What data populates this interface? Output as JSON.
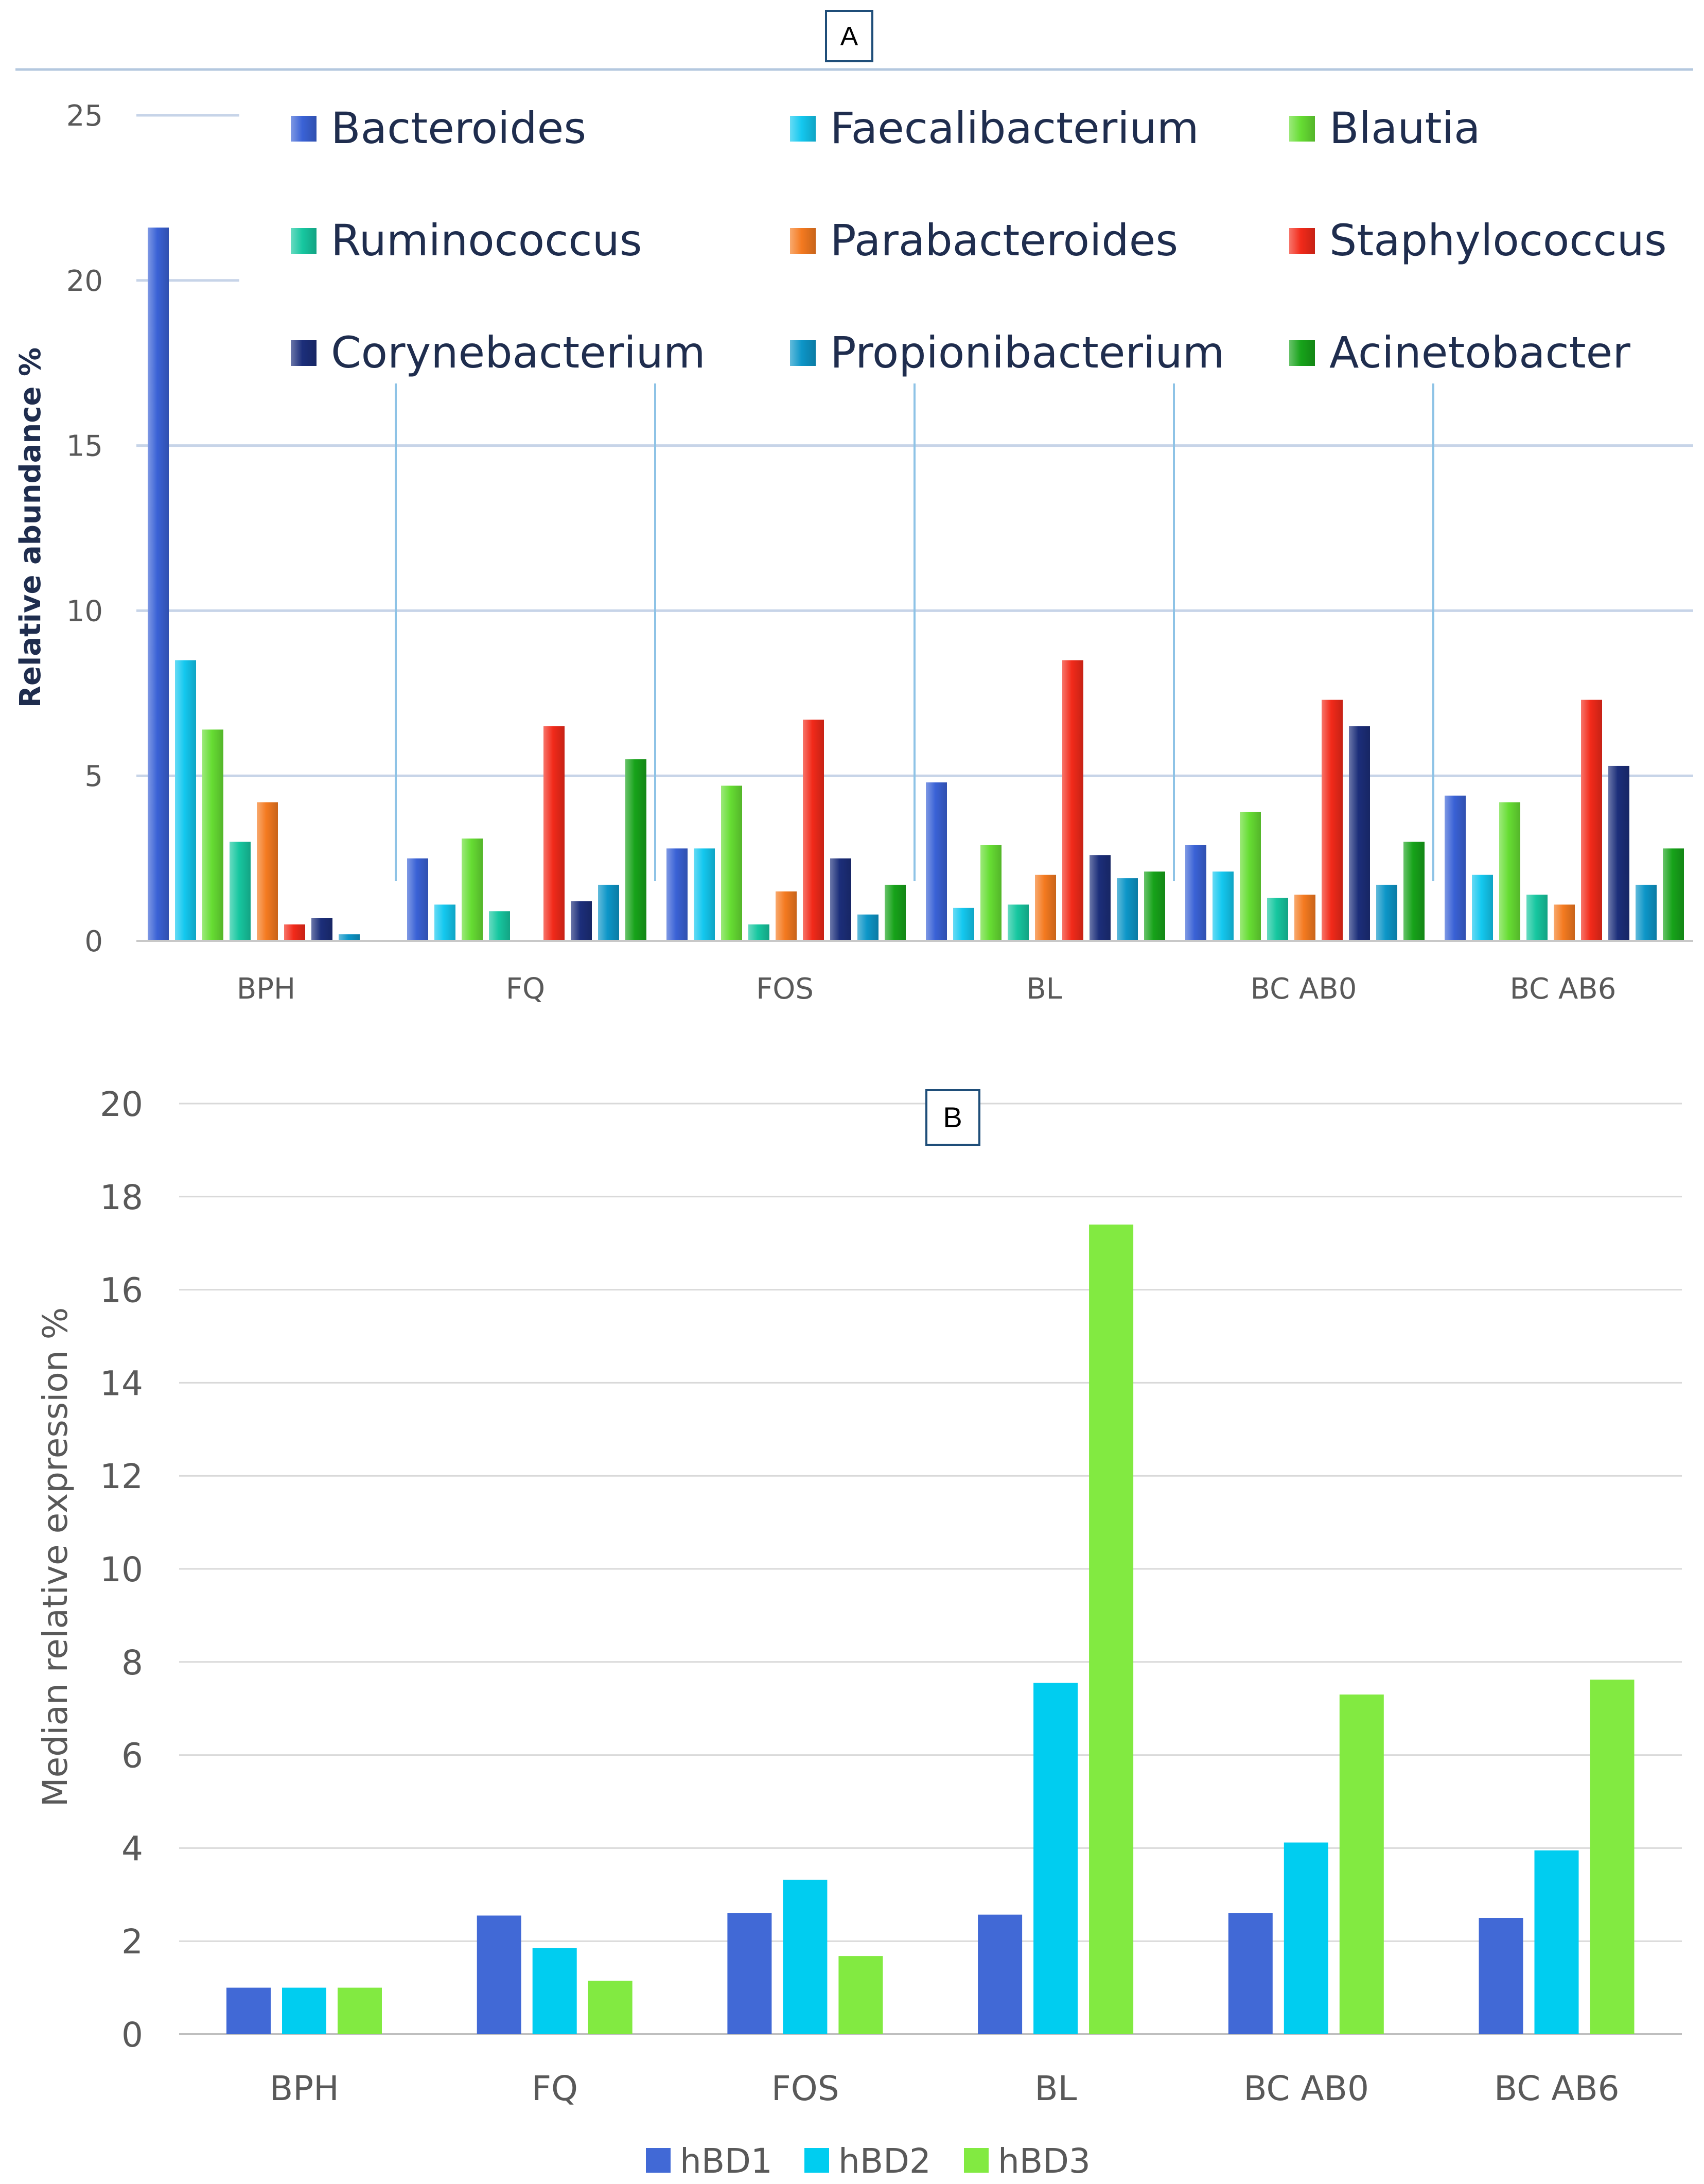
{
  "chart_data": [
    {
      "type": "bar",
      "panel_label": "A",
      "title": "",
      "xlabel": "",
      "ylabel": "Relative abundance %",
      "ylim": [
        0,
        25
      ],
      "yticks": [
        "0",
        "5",
        "10",
        "15",
        "20",
        "25"
      ],
      "categories": [
        "BPH",
        "FQ",
        "FOS",
        "BL",
        "BC AB0",
        "BC AB6"
      ],
      "legend_position": "top-inside",
      "series": [
        {
          "name": "Bacteroides",
          "color": "#3a62d6",
          "values": [
            21.6,
            2.5,
            2.8,
            4.8,
            2.9,
            4.4
          ]
        },
        {
          "name": "Faecalibacterium",
          "color": "#14c8ef",
          "values": [
            8.5,
            1.1,
            2.8,
            1.0,
            2.1,
            2.0
          ]
        },
        {
          "name": "Blautia",
          "color": "#66dd33",
          "values": [
            6.4,
            3.1,
            4.7,
            2.9,
            3.9,
            4.2
          ]
        },
        {
          "name": "Ruminococcus",
          "color": "#17c7a0",
          "values": [
            3.0,
            0.9,
            0.5,
            1.1,
            1.3,
            1.4
          ]
        },
        {
          "name": "Parabacteroides",
          "color": "#f47a20",
          "values": [
            4.2,
            0.0,
            1.5,
            2.0,
            1.4,
            1.1
          ]
        },
        {
          "name": "Staphylococcus",
          "color": "#f22a1a",
          "values": [
            0.5,
            6.5,
            6.7,
            8.5,
            7.3,
            7.3
          ]
        },
        {
          "name": "Corynebacterium",
          "color": "#1c2e7a",
          "values": [
            0.7,
            1.2,
            2.5,
            2.6,
            6.5,
            5.3
          ]
        },
        {
          "name": "Propionibacterium",
          "color": "#0d96c8",
          "values": [
            0.2,
            1.7,
            0.8,
            1.9,
            1.7,
            1.7
          ]
        },
        {
          "name": "Acinetobacter",
          "color": "#17a31a",
          "values": [
            0.0,
            5.5,
            1.7,
            2.1,
            3.0,
            2.8
          ]
        }
      ]
    },
    {
      "type": "bar",
      "panel_label": "B",
      "title": "",
      "xlabel": "",
      "ylabel": "Median relative expression %",
      "ylim": [
        0,
        20
      ],
      "yticks": [
        "0",
        "2",
        "4",
        "6",
        "8",
        "10",
        "12",
        "14",
        "16",
        "18",
        "20"
      ],
      "categories": [
        "BPH",
        "FQ",
        "FOS",
        "BL",
        "BC AB0",
        "BC AB6"
      ],
      "legend_position": "bottom",
      "series": [
        {
          "name": "hBD1",
          "color": "#4169d6",
          "values": [
            1.0,
            2.55,
            2.6,
            2.57,
            2.6,
            2.5
          ]
        },
        {
          "name": "hBD2",
          "color": "#00cdf0",
          "values": [
            1.0,
            1.85,
            3.32,
            7.55,
            4.12,
            3.95
          ]
        },
        {
          "name": "hBD3",
          "color": "#82ea41",
          "values": [
            1.0,
            1.15,
            1.68,
            17.4,
            7.3,
            7.62
          ]
        }
      ]
    }
  ]
}
